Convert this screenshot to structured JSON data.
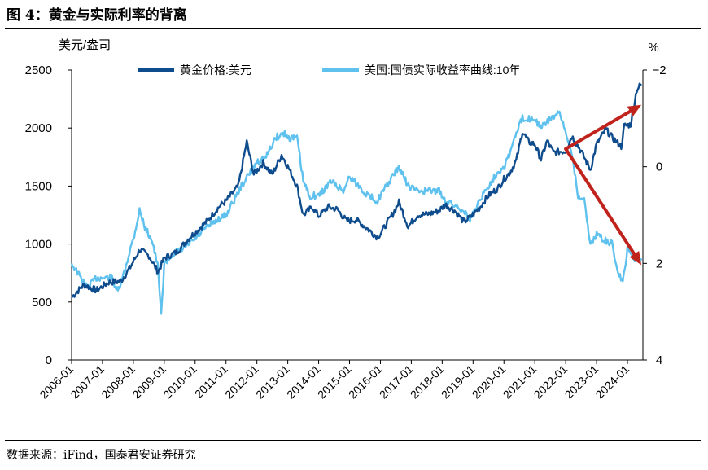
{
  "header": {
    "figure_title": "图 4：黄金与实际利率的背离"
  },
  "footer": {
    "source": "数据来源：iFind，国泰君安证券研究"
  },
  "colors": {
    "gold": "#0e4c8d",
    "real_rate": "#5ec1ee",
    "arrow": "#c0231b",
    "axis": "#000000"
  },
  "chart_data": {
    "type": "line",
    "title": "黄金与实际利率的背离",
    "y_left": {
      "label": "美元/盎司",
      "range": [
        0,
        2500
      ],
      "ticks": [
        "0",
        "500",
        "1000",
        "1500",
        "2000",
        "2500"
      ]
    },
    "y_right": {
      "label": "%",
      "range": [
        -2,
        4
      ],
      "inverted": true,
      "ticks": [
        "−2",
        "0",
        "2",
        "4"
      ]
    },
    "x_range": [
      2006.0,
      2024.5
    ],
    "x_ticks": [
      "2006-01",
      "2007-01",
      "2008-01",
      "2009-01",
      "2010-01",
      "2011-01",
      "2012-01",
      "2013-01",
      "2014-01",
      "2015-01",
      "2016-01",
      "2017-01",
      "2018-01",
      "2019-01",
      "2020-01",
      "2021-01",
      "2022-01",
      "2023-01",
      "2024-01"
    ],
    "series": [
      {
        "name": "黄金价格:美元",
        "axis": "left",
        "points": [
          [
            2006.0,
            540
          ],
          [
            2006.4,
            650
          ],
          [
            2006.8,
            600
          ],
          [
            2007.2,
            670
          ],
          [
            2007.6,
            680
          ],
          [
            2007.9,
            800
          ],
          [
            2008.2,
            950
          ],
          [
            2008.5,
            900
          ],
          [
            2008.8,
            760
          ],
          [
            2009.0,
            880
          ],
          [
            2009.4,
            930
          ],
          [
            2009.8,
            1050
          ],
          [
            2010.0,
            1100
          ],
          [
            2010.4,
            1200
          ],
          [
            2010.8,
            1330
          ],
          [
            2011.0,
            1370
          ],
          [
            2011.4,
            1500
          ],
          [
            2011.67,
            1880
          ],
          [
            2011.9,
            1600
          ],
          [
            2012.2,
            1700
          ],
          [
            2012.5,
            1600
          ],
          [
            2012.8,
            1770
          ],
          [
            2013.0,
            1670
          ],
          [
            2013.3,
            1500
          ],
          [
            2013.5,
            1250
          ],
          [
            2013.8,
            1320
          ],
          [
            2014.0,
            1240
          ],
          [
            2014.3,
            1320
          ],
          [
            2014.6,
            1300
          ],
          [
            2014.9,
            1200
          ],
          [
            2015.2,
            1210
          ],
          [
            2015.5,
            1150
          ],
          [
            2015.9,
            1060
          ],
          [
            2016.0,
            1090
          ],
          [
            2016.4,
            1260
          ],
          [
            2016.6,
            1360
          ],
          [
            2016.9,
            1150
          ],
          [
            2017.2,
            1250
          ],
          [
            2017.6,
            1260
          ],
          [
            2017.9,
            1290
          ],
          [
            2018.1,
            1340
          ],
          [
            2018.4,
            1290
          ],
          [
            2018.7,
            1190
          ],
          [
            2018.9,
            1230
          ],
          [
            2019.2,
            1310
          ],
          [
            2019.5,
            1420
          ],
          [
            2019.8,
            1480
          ],
          [
            2020.0,
            1560
          ],
          [
            2020.2,
            1620
          ],
          [
            2020.4,
            1720
          ],
          [
            2020.6,
            1970
          ],
          [
            2020.8,
            1880
          ],
          [
            2021.0,
            1860
          ],
          [
            2021.2,
            1730
          ],
          [
            2021.4,
            1890
          ],
          [
            2021.6,
            1790
          ],
          [
            2021.9,
            1800
          ],
          [
            2022.0,
            1800
          ],
          [
            2022.2,
            1930
          ],
          [
            2022.5,
            1800
          ],
          [
            2022.8,
            1640
          ],
          [
            2023.0,
            1860
          ],
          [
            2023.3,
            1990
          ],
          [
            2023.5,
            1920
          ],
          [
            2023.8,
            1840
          ],
          [
            2023.9,
            2020
          ],
          [
            2024.1,
            2030
          ],
          [
            2024.3,
            2330
          ],
          [
            2024.45,
            2380
          ]
        ]
      },
      {
        "name": "美国:国债实际收益率曲线:10年",
        "axis": "right",
        "points": [
          [
            2006.0,
            2.0
          ],
          [
            2006.3,
            2.3
          ],
          [
            2006.5,
            2.5
          ],
          [
            2006.8,
            2.3
          ],
          [
            2007.0,
            2.3
          ],
          [
            2007.3,
            2.3
          ],
          [
            2007.5,
            2.6
          ],
          [
            2007.7,
            2.2
          ],
          [
            2007.9,
            1.7
          ],
          [
            2008.0,
            1.5
          ],
          [
            2008.2,
            0.9
          ],
          [
            2008.4,
            1.3
          ],
          [
            2008.6,
            1.5
          ],
          [
            2008.8,
            2.1
          ],
          [
            2008.9,
            3.1
          ],
          [
            2009.0,
            2.0
          ],
          [
            2009.3,
            1.8
          ],
          [
            2009.6,
            1.7
          ],
          [
            2010.0,
            1.5
          ],
          [
            2010.3,
            1.3
          ],
          [
            2010.7,
            1.1
          ],
          [
            2011.0,
            1.0
          ],
          [
            2011.5,
            0.4
          ],
          [
            2011.8,
            0.1
          ],
          [
            2012.0,
            -0.1
          ],
          [
            2012.3,
            -0.2
          ],
          [
            2012.6,
            -0.6
          ],
          [
            2012.9,
            -0.7
          ],
          [
            2013.0,
            -0.6
          ],
          [
            2013.3,
            -0.6
          ],
          [
            2013.5,
            0.3
          ],
          [
            2013.7,
            0.6
          ],
          [
            2014.0,
            0.6
          ],
          [
            2014.4,
            0.3
          ],
          [
            2014.8,
            0.5
          ],
          [
            2015.0,
            0.2
          ],
          [
            2015.3,
            0.4
          ],
          [
            2015.6,
            0.6
          ],
          [
            2015.9,
            0.7
          ],
          [
            2016.1,
            0.5
          ],
          [
            2016.4,
            0.2
          ],
          [
            2016.6,
            0.0
          ],
          [
            2016.9,
            0.4
          ],
          [
            2017.2,
            0.5
          ],
          [
            2017.6,
            0.5
          ],
          [
            2017.9,
            0.5
          ],
          [
            2018.1,
            0.7
          ],
          [
            2018.4,
            0.8
          ],
          [
            2018.7,
            0.9
          ],
          [
            2018.9,
            1.1
          ],
          [
            2019.2,
            0.7
          ],
          [
            2019.5,
            0.4
          ],
          [
            2019.8,
            0.1
          ],
          [
            2020.0,
            0.0
          ],
          [
            2020.2,
            -0.3
          ],
          [
            2020.4,
            -0.7
          ],
          [
            2020.6,
            -1.0
          ],
          [
            2020.9,
            -1.0
          ],
          [
            2021.0,
            -1.0
          ],
          [
            2021.2,
            -0.8
          ],
          [
            2021.5,
            -1.0
          ],
          [
            2021.8,
            -1.1
          ],
          [
            2022.0,
            -0.7
          ],
          [
            2022.2,
            -0.3
          ],
          [
            2022.4,
            0.6
          ],
          [
            2022.6,
            0.7
          ],
          [
            2022.8,
            1.6
          ],
          [
            2023.0,
            1.4
          ],
          [
            2023.2,
            1.5
          ],
          [
            2023.5,
            1.6
          ],
          [
            2023.7,
            2.2
          ],
          [
            2023.85,
            2.4
          ],
          [
            2024.0,
            1.7
          ],
          [
            2024.2,
            1.9
          ],
          [
            2024.45,
            1.9
          ]
        ]
      }
    ],
    "annotations": [
      {
        "type": "arrow",
        "from": {
          "x": 2022.0,
          "y_left": 1820
        },
        "to": {
          "x": 2024.45,
          "y_left": 2200
        }
      },
      {
        "type": "arrow",
        "from": {
          "x": 2022.0,
          "y_left": 1820
        },
        "to": {
          "x": 2024.45,
          "y_left": 820
        }
      }
    ],
    "legend": "top-center",
    "grid": false
  }
}
